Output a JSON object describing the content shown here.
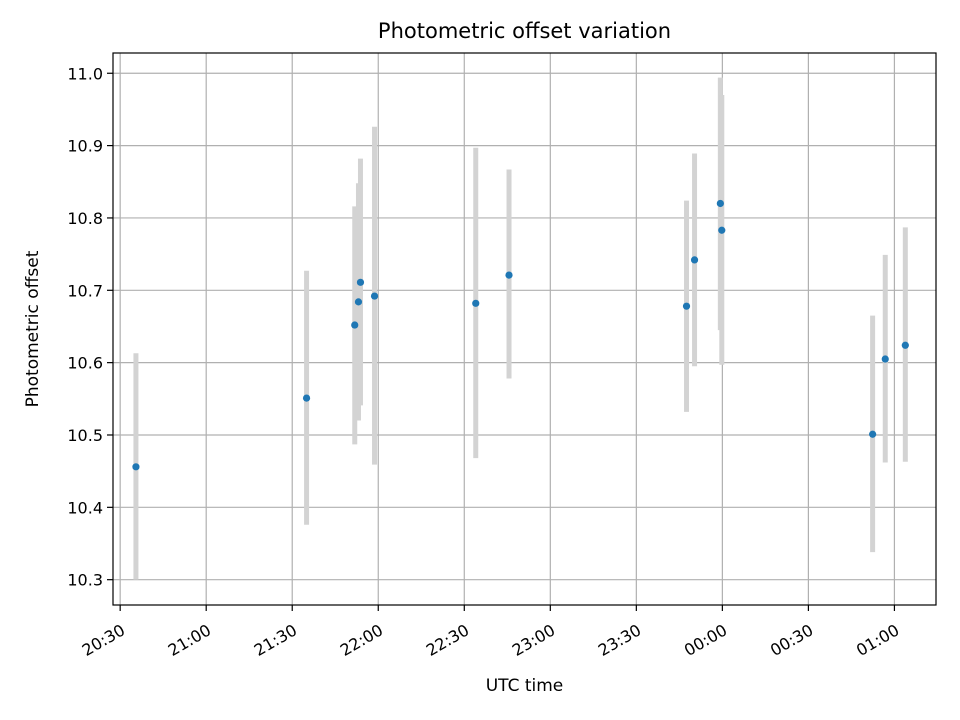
{
  "chart_data": {
    "type": "scatter",
    "title": "Photometric offset variation",
    "xlabel": "UTC time",
    "ylabel": "Photometric offset",
    "x_unit": "minutes after 20:30 UTC on the plotted axis",
    "xlim": [
      -2.5,
      284.5
    ],
    "ylim": [
      10.265,
      11.028
    ],
    "grid": true,
    "x_ticks": [
      {
        "label": "20:30",
        "value": 0
      },
      {
        "label": "21:00",
        "value": 30
      },
      {
        "label": "21:30",
        "value": 60
      },
      {
        "label": "22:00",
        "value": 90
      },
      {
        "label": "22:30",
        "value": 120
      },
      {
        "label": "23:00",
        "value": 150
      },
      {
        "label": "23:30",
        "value": 180
      },
      {
        "label": "00:00",
        "value": 210
      },
      {
        "label": "00:30",
        "value": 240
      },
      {
        "label": "01:00",
        "value": 270
      }
    ],
    "y_ticks": [
      {
        "label": "10.3",
        "value": 10.3
      },
      {
        "label": "10.4",
        "value": 10.4
      },
      {
        "label": "10.5",
        "value": 10.5
      },
      {
        "label": "10.6",
        "value": 10.6
      },
      {
        "label": "10.7",
        "value": 10.7
      },
      {
        "label": "10.8",
        "value": 10.8
      },
      {
        "label": "10.9",
        "value": 10.9
      },
      {
        "label": "11.0",
        "value": 11.0
      }
    ],
    "points": [
      {
        "x": 5.5,
        "y": 10.456,
        "err_low": 10.3,
        "err_high": 10.613
      },
      {
        "x": 65.0,
        "y": 10.551,
        "err_low": 10.376,
        "err_high": 10.727
      },
      {
        "x": 81.8,
        "y": 10.652,
        "err_low": 10.487,
        "err_high": 10.816
      },
      {
        "x": 83.1,
        "y": 10.684,
        "err_low": 10.52,
        "err_high": 10.848
      },
      {
        "x": 83.8,
        "y": 10.711,
        "err_low": 10.541,
        "err_high": 10.882
      },
      {
        "x": 88.7,
        "y": 10.692,
        "err_low": 10.459,
        "err_high": 10.926
      },
      {
        "x": 124.0,
        "y": 10.682,
        "err_low": 10.468,
        "err_high": 10.897
      },
      {
        "x": 135.6,
        "y": 10.721,
        "err_low": 10.578,
        "err_high": 10.867
      },
      {
        "x": 197.5,
        "y": 10.678,
        "err_low": 10.532,
        "err_high": 10.824
      },
      {
        "x": 200.3,
        "y": 10.742,
        "err_low": 10.595,
        "err_high": 10.889
      },
      {
        "x": 209.3,
        "y": 10.82,
        "err_low": 10.645,
        "err_high": 10.994
      },
      {
        "x": 209.8,
        "y": 10.783,
        "err_low": 10.597,
        "err_high": 10.97
      },
      {
        "x": 262.4,
        "y": 10.501,
        "err_low": 10.338,
        "err_high": 10.665
      },
      {
        "x": 266.8,
        "y": 10.605,
        "err_low": 10.462,
        "err_high": 10.749
      },
      {
        "x": 273.8,
        "y": 10.624,
        "err_low": 10.463,
        "err_high": 10.787
      }
    ],
    "colors": {
      "point": "#1f77b4",
      "errorbar": "#d3d3d3",
      "grid": "#b0b0b0",
      "frame": "#000000"
    }
  }
}
